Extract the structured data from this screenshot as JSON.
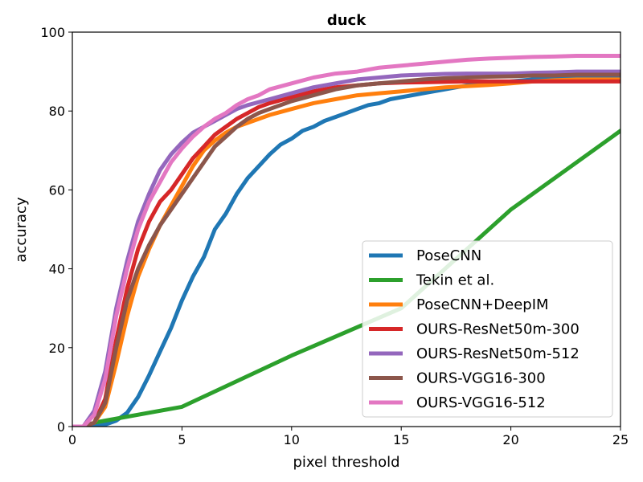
{
  "chart_data": {
    "type": "line",
    "title": "duck",
    "xlabel": "pixel threshold",
    "ylabel": "accuracy",
    "xlim": [
      0,
      25
    ],
    "ylim": [
      0,
      100
    ],
    "xticks": [
      0,
      5,
      10,
      15,
      20,
      25
    ],
    "yticks": [
      0,
      20,
      40,
      60,
      80,
      100
    ],
    "grid": false,
    "legend_position": "lower-right",
    "series": [
      {
        "name": "PoseCNN",
        "color": "#1f77b4",
        "points": [
          [
            0,
            0
          ],
          [
            1,
            0
          ],
          [
            1.5,
            0.5
          ],
          [
            2,
            1.5
          ],
          [
            2.5,
            3.5
          ],
          [
            3,
            7.5
          ],
          [
            3.5,
            13
          ],
          [
            4,
            19
          ],
          [
            4.5,
            25
          ],
          [
            5,
            32
          ],
          [
            5.5,
            38
          ],
          [
            6,
            43
          ],
          [
            6.5,
            50
          ],
          [
            7,
            54
          ],
          [
            7.5,
            59
          ],
          [
            8,
            63
          ],
          [
            8.5,
            66
          ],
          [
            9,
            69
          ],
          [
            9.5,
            71.5
          ],
          [
            10,
            73
          ],
          [
            10.5,
            75
          ],
          [
            11,
            76
          ],
          [
            11.5,
            77.5
          ],
          [
            12,
            78.5
          ],
          [
            12.5,
            79.5
          ],
          [
            13,
            80.5
          ],
          [
            13.5,
            81.5
          ],
          [
            14,
            82
          ],
          [
            14.5,
            83
          ],
          [
            15,
            83.5
          ],
          [
            16,
            84.5
          ],
          [
            17,
            85.5
          ],
          [
            18,
            86.5
          ],
          [
            19,
            87
          ],
          [
            20,
            87.5
          ],
          [
            21,
            88
          ],
          [
            22,
            88.5
          ],
          [
            23,
            88.8
          ],
          [
            24,
            89
          ],
          [
            25,
            89
          ]
        ]
      },
      {
        "name": "Tekin et al.",
        "color": "#2ca02c",
        "points": [
          [
            1,
            1
          ],
          [
            5,
            5
          ],
          [
            10,
            18
          ],
          [
            15,
            30
          ],
          [
            20,
            55
          ],
          [
            25,
            75
          ]
        ]
      },
      {
        "name": "PoseCNN+DeepIM",
        "color": "#ff7f0e",
        "points": [
          [
            0,
            0
          ],
          [
            0.5,
            0
          ],
          [
            1,
            1
          ],
          [
            1.5,
            5
          ],
          [
            2,
            16
          ],
          [
            2.5,
            28
          ],
          [
            3,
            38
          ],
          [
            3.5,
            45
          ],
          [
            4,
            51
          ],
          [
            4.5,
            56
          ],
          [
            5,
            61
          ],
          [
            5.5,
            66
          ],
          [
            6,
            70
          ],
          [
            6.5,
            72.5
          ],
          [
            7,
            74.5
          ],
          [
            7.5,
            76
          ],
          [
            8,
            77
          ],
          [
            8.5,
            78
          ],
          [
            9,
            79
          ],
          [
            10,
            80.5
          ],
          [
            11,
            82
          ],
          [
            12,
            83
          ],
          [
            13,
            84
          ],
          [
            14,
            84.5
          ],
          [
            15,
            85
          ],
          [
            16,
            85.5
          ],
          [
            17,
            86
          ],
          [
            18,
            86.3
          ],
          [
            19,
            86.6
          ],
          [
            20,
            87
          ],
          [
            21,
            87.5
          ],
          [
            22,
            87.8
          ],
          [
            23,
            88
          ],
          [
            24,
            88
          ],
          [
            25,
            88
          ]
        ]
      },
      {
        "name": "OURS-ResNet50m-300",
        "color": "#d62728",
        "points": [
          [
            0,
            0
          ],
          [
            0.5,
            0
          ],
          [
            1,
            1
          ],
          [
            1.5,
            7
          ],
          [
            2,
            22
          ],
          [
            2.5,
            35
          ],
          [
            3,
            45
          ],
          [
            3.5,
            52
          ],
          [
            4,
            57
          ],
          [
            4.5,
            60
          ],
          [
            5,
            64
          ],
          [
            5.5,
            68
          ],
          [
            6,
            71
          ],
          [
            6.5,
            74
          ],
          [
            7,
            76
          ],
          [
            7.5,
            78
          ],
          [
            8,
            79.5
          ],
          [
            8.5,
            81
          ],
          [
            9,
            82
          ],
          [
            10,
            83.5
          ],
          [
            11,
            85
          ],
          [
            12,
            86
          ],
          [
            13,
            86.5
          ],
          [
            14,
            87
          ],
          [
            15,
            87.2
          ],
          [
            16,
            87.3
          ],
          [
            17,
            87.4
          ],
          [
            18,
            87.5
          ],
          [
            19,
            87.5
          ],
          [
            20,
            87.5
          ],
          [
            21,
            87.5
          ],
          [
            22,
            87.5
          ],
          [
            23,
            87.5
          ],
          [
            24,
            87.5
          ],
          [
            25,
            87.5
          ]
        ]
      },
      {
        "name": "OURS-ResNet50m-512",
        "color": "#9467bd",
        "points": [
          [
            0,
            0
          ],
          [
            0.5,
            0
          ],
          [
            1,
            4
          ],
          [
            1.5,
            14
          ],
          [
            2,
            30
          ],
          [
            2.5,
            42
          ],
          [
            3,
            52
          ],
          [
            3.5,
            59
          ],
          [
            4,
            65
          ],
          [
            4.5,
            69
          ],
          [
            5,
            72
          ],
          [
            5.5,
            74.5
          ],
          [
            6,
            76
          ],
          [
            6.5,
            77.5
          ],
          [
            7,
            79
          ],
          [
            7.5,
            80.5
          ],
          [
            8,
            81.5
          ],
          [
            9,
            83
          ],
          [
            10,
            84.5
          ],
          [
            11,
            86
          ],
          [
            12,
            87
          ],
          [
            13,
            88
          ],
          [
            14,
            88.5
          ],
          [
            15,
            89
          ],
          [
            16,
            89.2
          ],
          [
            17,
            89.4
          ],
          [
            18,
            89.5
          ],
          [
            19,
            89.5
          ],
          [
            20,
            89.5
          ],
          [
            21,
            89.7
          ],
          [
            22,
            89.8
          ],
          [
            23,
            90
          ],
          [
            24,
            90
          ],
          [
            25,
            90
          ]
        ]
      },
      {
        "name": "OURS-VGG16-300",
        "color": "#8c564b",
        "points": [
          [
            0,
            0
          ],
          [
            0.5,
            0
          ],
          [
            1,
            1
          ],
          [
            1.5,
            6
          ],
          [
            2,
            20
          ],
          [
            2.5,
            32
          ],
          [
            3,
            40
          ],
          [
            3.5,
            46
          ],
          [
            4,
            51
          ],
          [
            4.5,
            55
          ],
          [
            5,
            59
          ],
          [
            5.5,
            63
          ],
          [
            6,
            67
          ],
          [
            6.5,
            71
          ],
          [
            7,
            73.5
          ],
          [
            7.5,
            76
          ],
          [
            8,
            78
          ],
          [
            8.5,
            79.5
          ],
          [
            9,
            80.5
          ],
          [
            10,
            82.5
          ],
          [
            11,
            84
          ],
          [
            12,
            85.5
          ],
          [
            13,
            86.5
          ],
          [
            14,
            87
          ],
          [
            15,
            87.5
          ],
          [
            16,
            88
          ],
          [
            17,
            88.3
          ],
          [
            18,
            88.5
          ],
          [
            19,
            88.7
          ],
          [
            20,
            88.8
          ],
          [
            21,
            89
          ],
          [
            22,
            89
          ],
          [
            23,
            89.2
          ],
          [
            24,
            89.2
          ],
          [
            25,
            89.2
          ]
        ]
      },
      {
        "name": "OURS-VGG16-512",
        "color": "#e377c2",
        "points": [
          [
            0,
            0
          ],
          [
            0.5,
            0
          ],
          [
            1,
            3
          ],
          [
            1.5,
            12
          ],
          [
            2,
            28
          ],
          [
            2.5,
            40
          ],
          [
            3,
            50
          ],
          [
            3.5,
            57
          ],
          [
            4,
            62
          ],
          [
            4.5,
            67
          ],
          [
            5,
            70.5
          ],
          [
            5.5,
            73.5
          ],
          [
            6,
            76
          ],
          [
            6.5,
            78
          ],
          [
            7,
            79.5
          ],
          [
            7.5,
            81.5
          ],
          [
            8,
            83
          ],
          [
            8.5,
            84
          ],
          [
            9,
            85.5
          ],
          [
            10,
            87
          ],
          [
            11,
            88.5
          ],
          [
            12,
            89.5
          ],
          [
            13,
            90
          ],
          [
            14,
            91
          ],
          [
            15,
            91.5
          ],
          [
            16,
            92
          ],
          [
            17,
            92.5
          ],
          [
            18,
            93
          ],
          [
            19,
            93.3
          ],
          [
            20,
            93.5
          ],
          [
            21,
            93.7
          ],
          [
            22,
            93.8
          ],
          [
            23,
            94
          ],
          [
            24,
            94
          ],
          [
            25,
            94
          ]
        ]
      }
    ]
  }
}
